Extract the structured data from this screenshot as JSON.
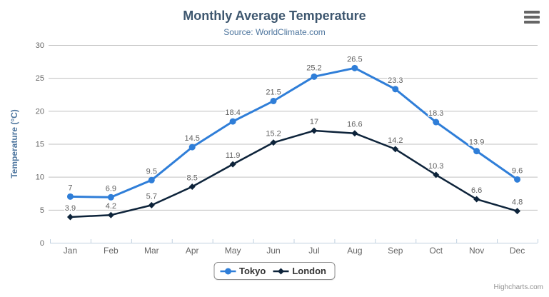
{
  "title": "Monthly Average Temperature",
  "subtitle": "Source: WorldClimate.com",
  "credits": "Highcharts.com",
  "menu_icon": "hamburger-export-menu-icon",
  "colors": {
    "tokyo_series": "#2f7ed8",
    "london_series": "#0d233a",
    "title_text": "#3e576f",
    "subtitle_text": "#4d759e",
    "axis_title_text": "#4d759e",
    "axis_label_text": "#666666",
    "grid_line": "#c0c0c0",
    "axis_line": "#c0d0e0",
    "data_label_text": "#606060",
    "legend_text": "#333333",
    "legend_border": "#909090",
    "credits_text": "#909090",
    "menu_icon_bars": "#666666"
  },
  "chart_data": {
    "type": "line",
    "title": "Monthly Average Temperature",
    "subtitle": "Source: WorldClimate.com",
    "xlabel": "",
    "ylabel": "Temperature (°C)",
    "categories": [
      "Jan",
      "Feb",
      "Mar",
      "Apr",
      "May",
      "Jun",
      "Jul",
      "Aug",
      "Sep",
      "Oct",
      "Nov",
      "Dec"
    ],
    "series": [
      {
        "name": "Tokyo",
        "color": "#2f7ed8",
        "marker": "circle",
        "values": [
          7,
          6.9,
          9.5,
          14.5,
          18.4,
          21.5,
          25.2,
          26.5,
          23.3,
          18.3,
          13.9,
          9.6
        ]
      },
      {
        "name": "London",
        "color": "#0d233a",
        "marker": "diamond",
        "values": [
          3.9,
          4.2,
          5.7,
          8.5,
          11.9,
          15.2,
          17,
          16.6,
          14.2,
          10.3,
          6.6,
          4.8
        ]
      }
    ],
    "ylim": [
      0,
      30
    ],
    "yticks": [
      0,
      5,
      10,
      15,
      20,
      25,
      30
    ],
    "grid": true,
    "data_labels": true,
    "legend_position": "bottom"
  }
}
